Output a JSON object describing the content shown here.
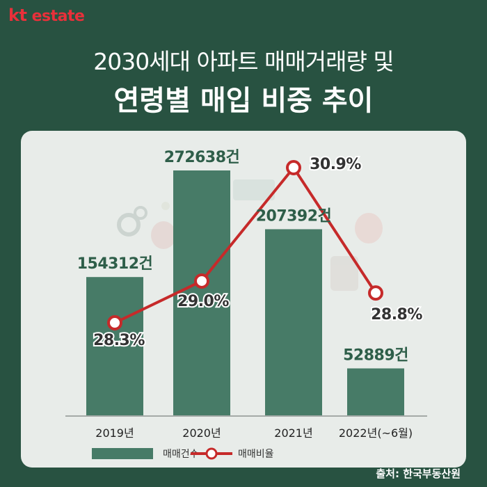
{
  "brand": {
    "logo_kt": "kt",
    "logo_estate": "estate"
  },
  "title_line1": "2030세대 아파트 매매거래량 및",
  "title_line2": "연령별 매입 비중 추이",
  "source": "출처: 한국부동산원",
  "colors": {
    "bar": "#477b67",
    "line": "#c62a2a",
    "count_label": "#2e5e49",
    "pct_label": "#333333",
    "background": "#285241",
    "panel": "#e8ece9"
  },
  "chart_data": {
    "type": "bar",
    "categories": [
      "2019년",
      "2020년",
      "2021년",
      "2022년(~6월)"
    ],
    "series": [
      {
        "name": "매매건수",
        "type": "bar",
        "values": [
          154312,
          272638,
          207392,
          52889
        ],
        "labels": [
          "154312건",
          "272638건",
          "207392건",
          "52889건"
        ]
      },
      {
        "name": "매매비율",
        "type": "line",
        "values": [
          28.3,
          29.0,
          30.9,
          28.8
        ],
        "labels": [
          "28.3%",
          "29.0%",
          "30.9%",
          "28.8%"
        ]
      }
    ],
    "legend": {
      "position": "bottom",
      "entries": [
        "매매건수",
        "매매비율"
      ]
    }
  }
}
